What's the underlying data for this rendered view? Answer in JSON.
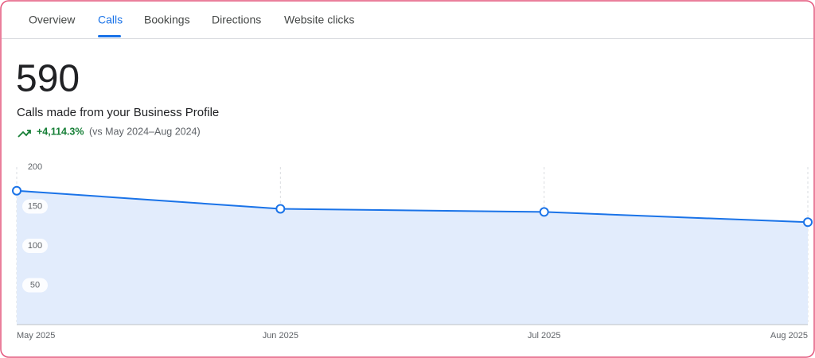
{
  "tabs": [
    "Overview",
    "Calls",
    "Bookings",
    "Directions",
    "Website clicks"
  ],
  "metric": {
    "value": "590",
    "label": "Calls made from your Business Profile",
    "change": "+4,114.3%",
    "comparison": "(vs May 2024–Aug 2024)"
  },
  "chart_data": {
    "type": "area",
    "categories": [
      "May 2025",
      "Jun 2025",
      "Jul 2025",
      "Aug 2025"
    ],
    "values": [
      170,
      147,
      143,
      130
    ],
    "color": "#1a73e8",
    "fill": "#e2ecfc",
    "ylim": [
      0,
      200
    ],
    "yticks": [
      50,
      100,
      150,
      200
    ],
    "grid": false
  }
}
